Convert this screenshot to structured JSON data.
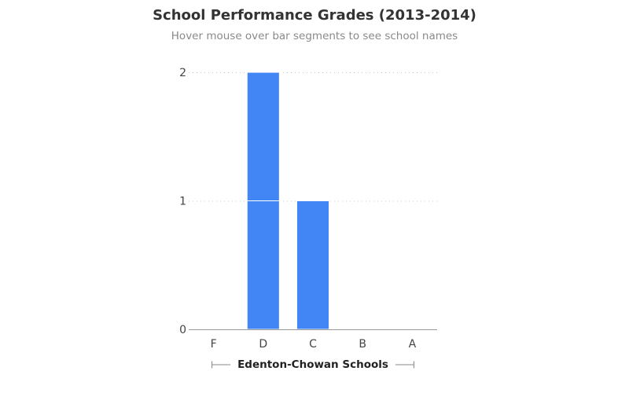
{
  "title": "School Performance Grades (2013-2014)",
  "subtitle": "Hover mouse over bar segments to see school names",
  "colors": {
    "bar": "#4285f4",
    "segment_divider": "#ffffff",
    "gridline": "#c8c8c8",
    "baseline": "#999999"
  },
  "chart_data": {
    "type": "bar",
    "stacked": true,
    "categories": [
      "F",
      "D",
      "C",
      "B",
      "A"
    ],
    "segments": [
      [],
      [
        1,
        1
      ],
      [
        1
      ],
      [],
      []
    ],
    "values": [
      0,
      2,
      1,
      0,
      0
    ],
    "xlabel": "Edenton-Chowan Schools",
    "ylabel": "",
    "ylim": [
      0,
      2
    ],
    "yticks": [
      0,
      1,
      2
    ],
    "grid": true,
    "legend": "none"
  }
}
